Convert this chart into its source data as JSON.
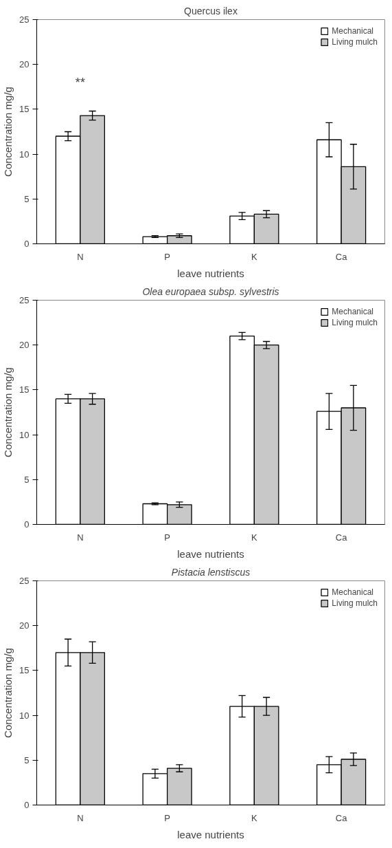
{
  "chart_data": [
    {
      "type": "bar",
      "title": "Quercus ilex",
      "xlabel": "leave nutrients",
      "ylabel": "Concentration mg/g",
      "categories": [
        "N",
        "P",
        "K",
        "Ca"
      ],
      "ylim": [
        0,
        25
      ],
      "yticks": [
        0,
        5,
        10,
        15,
        20,
        25
      ],
      "legend": "top right",
      "grid": false,
      "series": [
        {
          "name": "Mechanical",
          "color": "#ffffff",
          "values": [
            12,
            0.8,
            3.1,
            11.6
          ],
          "errors": [
            0.5,
            0.1,
            0.4,
            1.9
          ]
        },
        {
          "name": "Living mulch",
          "color": "#c8c8c8",
          "values": [
            14.3,
            0.9,
            3.3,
            8.6
          ],
          "errors": [
            0.5,
            0.2,
            0.4,
            2.5
          ]
        }
      ],
      "annotations": [
        "**"
      ]
    },
    {
      "type": "bar",
      "title": "Olea europaea subsp. sylvestris",
      "xlabel": "leave nutrients",
      "ylabel": "Concentration mg/g",
      "categories": [
        "N",
        "P",
        "K",
        "Ca"
      ],
      "ylim": [
        0,
        25
      ],
      "yticks": [
        0,
        5,
        10,
        15,
        20,
        25
      ],
      "legend": "top right",
      "grid": false,
      "series": [
        {
          "name": "Mechanical",
          "color": "#ffffff",
          "values": [
            14,
            2.3,
            21,
            12.6
          ],
          "errors": [
            0.5,
            0.1,
            0.4,
            2
          ]
        },
        {
          "name": "Living mulch",
          "color": "#c8c8c8",
          "values": [
            14,
            2.2,
            20,
            13
          ],
          "errors": [
            0.6,
            0.3,
            0.4,
            2.5
          ]
        }
      ]
    },
    {
      "type": "bar",
      "title": "Pistacia lenstiscus",
      "xlabel": "leave nutrients",
      "ylabel": "Concentration mg/g",
      "categories": [
        "N",
        "P",
        "K",
        "Ca"
      ],
      "ylim": [
        0,
        25
      ],
      "yticks": [
        0,
        5,
        10,
        15,
        20,
        25
      ],
      "legend": "top right",
      "grid": false,
      "series": [
        {
          "name": "Mechanical",
          "color": "#ffffff",
          "values": [
            17,
            3.5,
            11,
            4.5
          ],
          "errors": [
            1.5,
            0.5,
            1.2,
            0.9
          ]
        },
        {
          "name": "Living mulch",
          "color": "#c8c8c8",
          "values": [
            17,
            4.1,
            11,
            5.1
          ],
          "errors": [
            1.2,
            0.4,
            1.0,
            0.7
          ]
        }
      ]
    }
  ]
}
